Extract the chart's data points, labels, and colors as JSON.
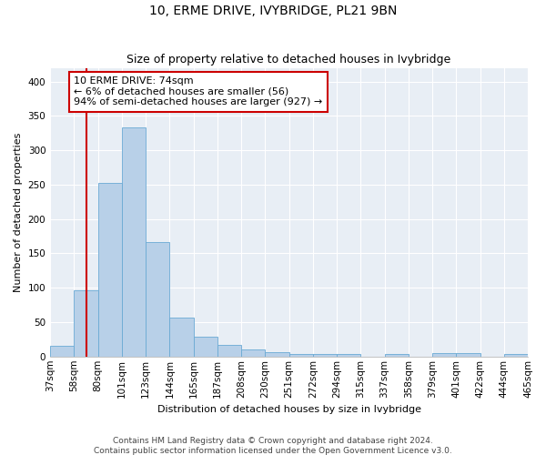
{
  "title": "10, ERME DRIVE, IVYBRIDGE, PL21 9BN",
  "subtitle": "Size of property relative to detached houses in Ivybridge",
  "xlabel": "Distribution of detached houses by size in Ivybridge",
  "ylabel": "Number of detached properties",
  "bin_edges": [
    "37sqm",
    "58sqm",
    "80sqm",
    "101sqm",
    "123sqm",
    "144sqm",
    "165sqm",
    "187sqm",
    "208sqm",
    "230sqm",
    "251sqm",
    "272sqm",
    "294sqm",
    "315sqm",
    "337sqm",
    "358sqm",
    "379sqm",
    "401sqm",
    "422sqm",
    "444sqm",
    "465sqm"
  ],
  "values": [
    15,
    96,
    253,
    334,
    167,
    57,
    29,
    17,
    10,
    6,
    4,
    4,
    4,
    0,
    4,
    0,
    5,
    5,
    0,
    4
  ],
  "bar_color": "#b8d0e8",
  "bar_edge_color": "#6aaad4",
  "plot_bg_color": "#e8eef5",
  "grid_color": "#ffffff",
  "annotation_text": "10 ERME DRIVE: 74sqm\n← 6% of detached houses are smaller (56)\n94% of semi-detached houses are larger (927) →",
  "annotation_box_facecolor": "#ffffff",
  "annotation_box_edgecolor": "#cc0000",
  "vline_color": "#cc0000",
  "vline_x_index": 1.5,
  "ylim": [
    0,
    420
  ],
  "yticks": [
    0,
    50,
    100,
    150,
    200,
    250,
    300,
    350,
    400
  ],
  "title_fontsize": 10,
  "subtitle_fontsize": 9,
  "axis_label_fontsize": 8,
  "tick_fontsize": 7.5,
  "annotation_fontsize": 8,
  "footer_fontsize": 6.5,
  "footer1": "Contains HM Land Registry data © Crown copyright and database right 2024.",
  "footer2": "Contains public sector information licensed under the Open Government Licence v3.0."
}
